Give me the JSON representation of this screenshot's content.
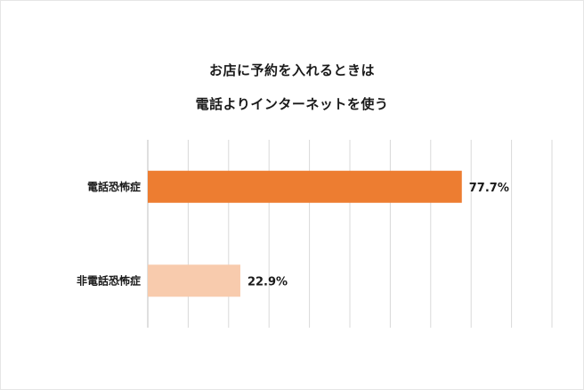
{
  "chart_data": {
    "type": "bar",
    "orientation": "horizontal",
    "title": [
      "お店に予約を入れるときは",
      "電話よりインターネットを使う"
    ],
    "categories": [
      "電話恐怖症",
      "非電話恐怖症"
    ],
    "values": [
      77.7,
      22.9
    ],
    "value_labels": [
      "77.7%",
      "22.9%"
    ],
    "unit": "%",
    "xlim": [
      0,
      100
    ],
    "grid": true,
    "colors": [
      "#ED7D31",
      "#F8CBAD"
    ]
  }
}
